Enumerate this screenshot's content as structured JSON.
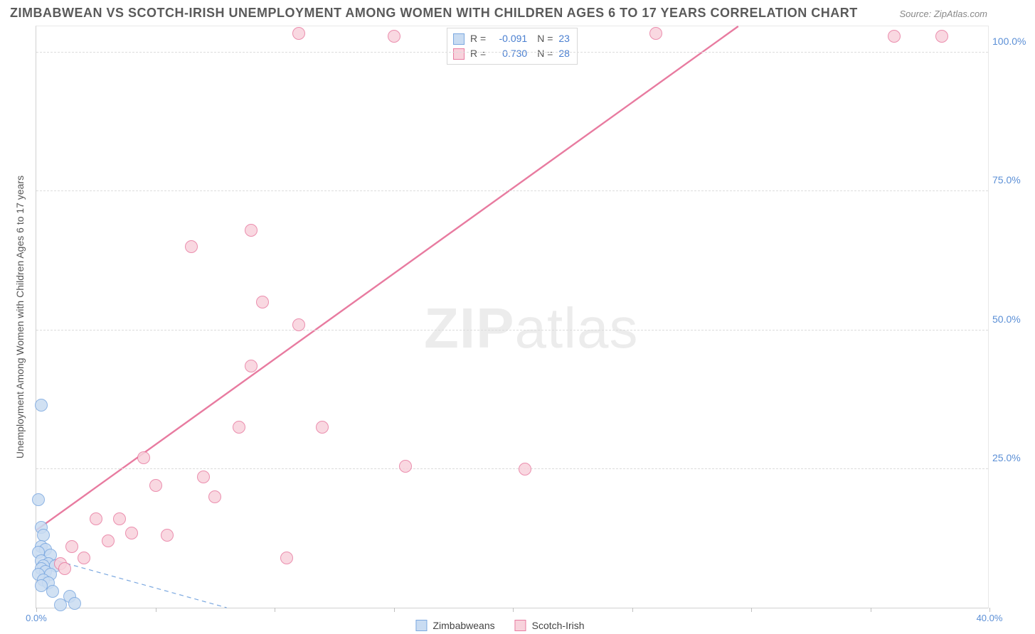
{
  "title": "ZIMBABWEAN VS SCOTCH-IRISH UNEMPLOYMENT AMONG WOMEN WITH CHILDREN AGES 6 TO 17 YEARS CORRELATION CHART",
  "source": "Source: ZipAtlas.com",
  "watermark_a": "ZIP",
  "watermark_b": "atlas",
  "y_axis_title": "Unemployment Among Women with Children Ages 6 to 17 years",
  "chart": {
    "type": "scatter",
    "xlim": [
      0,
      40
    ],
    "ylim": [
      0,
      105
    ],
    "x_ticks": [
      0,
      5,
      10,
      15,
      20,
      25,
      30,
      35,
      40
    ],
    "x_tick_labels": [
      "0.0%",
      "",
      "",
      "",
      "",
      "",
      "",
      "",
      "40.0%"
    ],
    "y_ticks": [
      25,
      50,
      75,
      100
    ],
    "y_tick_labels": [
      "25.0%",
      "50.0%",
      "75.0%",
      "100.0%"
    ],
    "grid_color": "#dcdcdc",
    "background_color": "#ffffff",
    "marker_radius": 9,
    "marker_stroke_width": 1.5,
    "series": [
      {
        "name": "Zimbabweans",
        "fill": "#c9dcf2",
        "stroke": "#7ba8e0",
        "R": "-0.091",
        "N": "23",
        "trend": {
          "x1": 0,
          "y1": 9.5,
          "x2": 8,
          "y2": 0,
          "dash": "6,5",
          "width": 1.2
        },
        "points": [
          [
            0.2,
            36.5
          ],
          [
            0.1,
            19.5
          ],
          [
            0.2,
            14.5
          ],
          [
            0.3,
            13.0
          ],
          [
            0.2,
            11.0
          ],
          [
            0.4,
            10.5
          ],
          [
            0.1,
            10.0
          ],
          [
            0.6,
            9.5
          ],
          [
            0.2,
            8.5
          ],
          [
            0.5,
            8.0
          ],
          [
            0.3,
            7.5
          ],
          [
            0.8,
            7.5
          ],
          [
            0.2,
            7.0
          ],
          [
            0.4,
            6.5
          ],
          [
            0.1,
            6.0
          ],
          [
            0.6,
            6.0
          ],
          [
            0.3,
            5.0
          ],
          [
            0.5,
            4.5
          ],
          [
            0.2,
            4.0
          ],
          [
            0.7,
            3.0
          ],
          [
            1.4,
            2.0
          ],
          [
            1.6,
            0.8
          ],
          [
            1.0,
            0.5
          ]
        ]
      },
      {
        "name": "Scotch-Irish",
        "fill": "#f8d2dc",
        "stroke": "#e87ba0",
        "R": "0.730",
        "N": "28",
        "trend": {
          "x1": 0,
          "y1": 14,
          "x2": 29.5,
          "y2": 105,
          "dash": "none",
          "width": 2.4
        },
        "points": [
          [
            11.0,
            103.5
          ],
          [
            15.0,
            103.0
          ],
          [
            26.0,
            103.5
          ],
          [
            36.0,
            103.0
          ],
          [
            38.0,
            103.0
          ],
          [
            9.0,
            68.0
          ],
          [
            6.5,
            65.0
          ],
          [
            9.5,
            55.0
          ],
          [
            11.0,
            51.0
          ],
          [
            9.0,
            43.5
          ],
          [
            8.5,
            32.5
          ],
          [
            12.0,
            32.5
          ],
          [
            4.5,
            27.0
          ],
          [
            15.5,
            25.5
          ],
          [
            20.5,
            25.0
          ],
          [
            7.0,
            23.5
          ],
          [
            5.0,
            22.0
          ],
          [
            7.5,
            20.0
          ],
          [
            2.5,
            16.0
          ],
          [
            3.5,
            16.0
          ],
          [
            4.0,
            13.5
          ],
          [
            5.5,
            13.0
          ],
          [
            3.0,
            12.0
          ],
          [
            1.5,
            11.0
          ],
          [
            2.0,
            9.0
          ],
          [
            10.5,
            9.0
          ],
          [
            1.0,
            8.0
          ],
          [
            1.2,
            7.0
          ]
        ]
      }
    ]
  },
  "legend_top_stat_color": "#4a7fd0",
  "legend_bottom": [
    {
      "label": "Zimbabweans",
      "fill": "#c9dcf2",
      "stroke": "#7ba8e0"
    },
    {
      "label": "Scotch-Irish",
      "fill": "#f8d2dc",
      "stroke": "#e87ba0"
    }
  ]
}
